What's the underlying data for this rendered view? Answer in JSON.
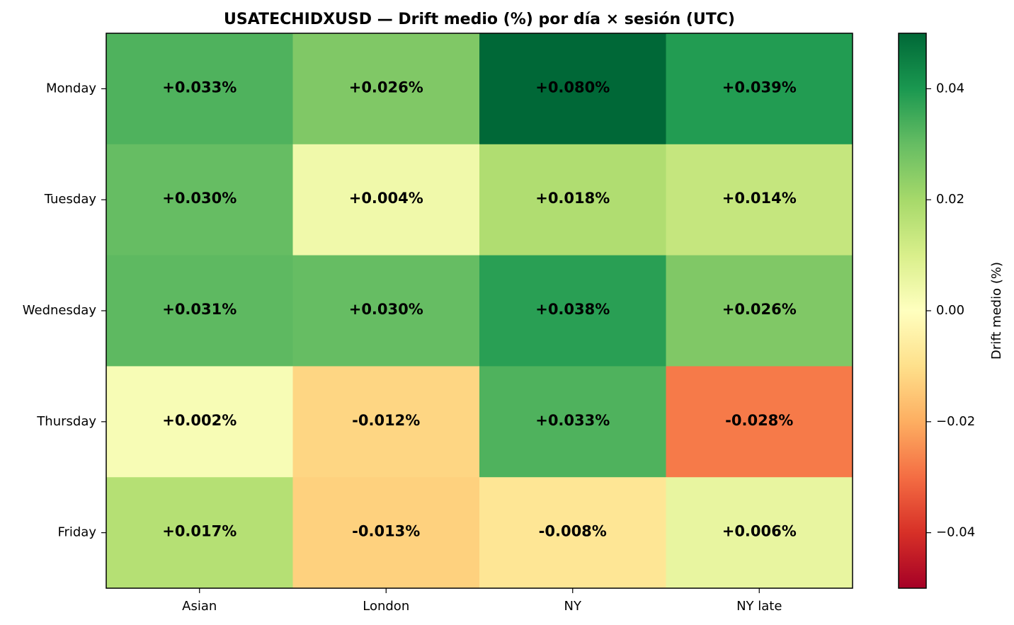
{
  "chart_data": {
    "type": "heatmap",
    "title": "USATECHIDXUSD — Drift medio (%) por día × sesión (UTC)",
    "x_categories": [
      "Asian",
      "London",
      "NY",
      "NY late"
    ],
    "y_categories": [
      "Monday",
      "Tuesday",
      "Wednesday",
      "Thursday",
      "Friday"
    ],
    "values": [
      [
        0.033,
        0.026,
        0.08,
        0.039
      ],
      [
        0.03,
        0.004,
        0.018,
        0.014
      ],
      [
        0.031,
        0.03,
        0.038,
        0.026
      ],
      [
        0.002,
        -0.012,
        0.033,
        -0.028
      ],
      [
        0.017,
        -0.013,
        -0.008,
        0.006
      ]
    ],
    "labels": [
      [
        "+0.033%",
        "+0.026%",
        "+0.080%",
        "+0.039%"
      ],
      [
        "+0.030%",
        "+0.004%",
        "+0.018%",
        "+0.014%"
      ],
      [
        "+0.031%",
        "+0.030%",
        "+0.038%",
        "+0.026%"
      ],
      [
        "+0.002%",
        "-0.012%",
        "+0.033%",
        "-0.028%"
      ],
      [
        "+0.017%",
        "-0.013%",
        "-0.008%",
        "+0.006%"
      ]
    ],
    "colorbar": {
      "label": "Drift medio (%)",
      "vmin": -0.05,
      "vmax": 0.05,
      "ticks": [
        0.04,
        0.02,
        0.0,
        -0.02,
        -0.04
      ],
      "tick_labels": [
        "0.04",
        "0.02",
        "0.00",
        "−0.02",
        "−0.04"
      ],
      "colormap": "RdYlGn"
    }
  }
}
